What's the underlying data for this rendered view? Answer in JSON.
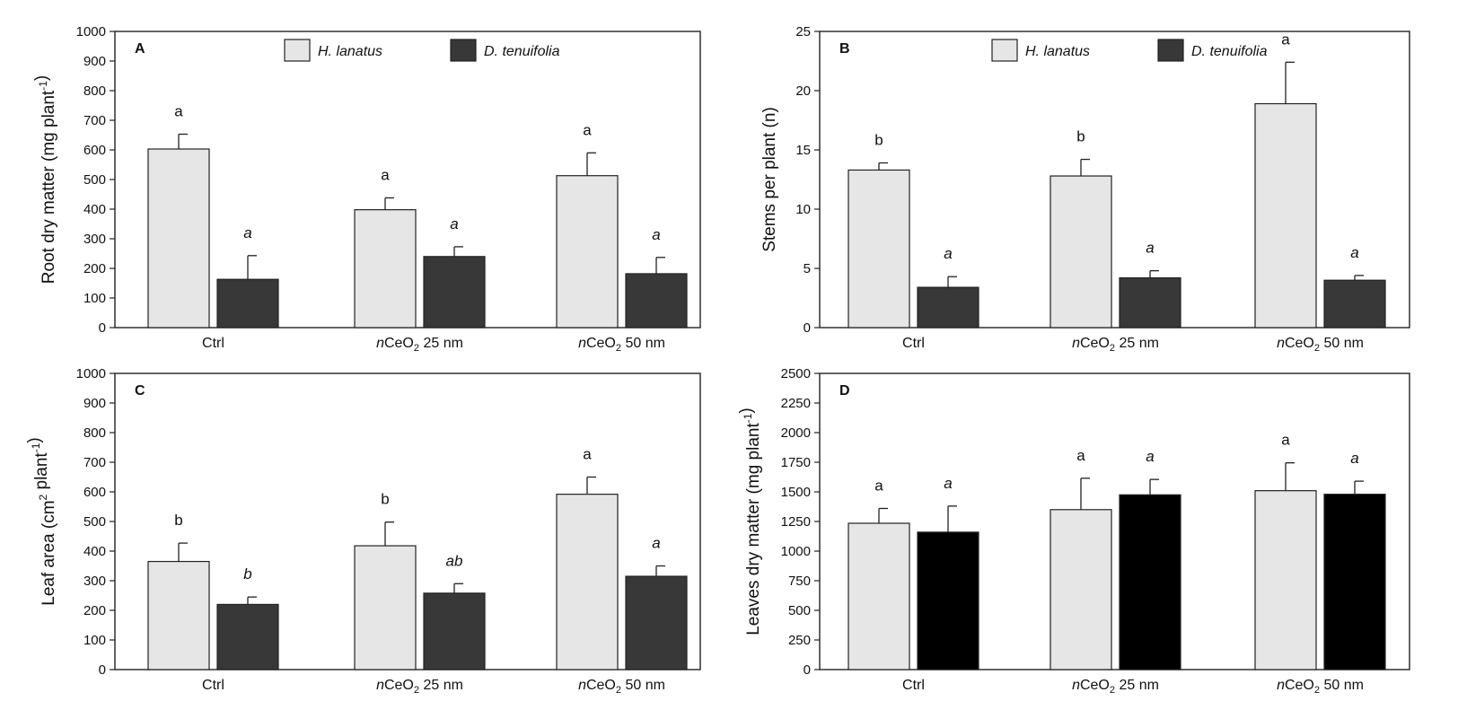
{
  "chart_data": [
    {
      "type": "bar",
      "panel_label": "A",
      "ylabel": "Root dry matter (mg plant",
      "ylabel_sup": "-1",
      "ylabel_tail": ")",
      "ylim": [
        0,
        1000
      ],
      "yticks": [
        0,
        100,
        200,
        300,
        400,
        500,
        600,
        700,
        800,
        900,
        1000
      ],
      "categories": [
        "Ctrl",
        "nCeO2 25 nm",
        "nCeO2 50 nm"
      ],
      "legend": "top-center",
      "series": [
        {
          "name": "H. lanatus",
          "color": "#e6e6e6",
          "values": [
            603,
            398,
            513
          ],
          "errors": [
            50,
            40,
            77
          ],
          "letters": [
            "a",
            "a",
            "a"
          ],
          "letter_italic": false
        },
        {
          "name": "D. tenuifolia",
          "color": "#383838",
          "values": [
            163,
            240,
            182
          ],
          "errors": [
            80,
            33,
            55
          ],
          "letters": [
            "a",
            "a",
            "a"
          ],
          "letter_italic": true
        }
      ]
    },
    {
      "type": "bar",
      "panel_label": "B",
      "ylabel": "Stems per plant (n)",
      "ylabel_sup": "",
      "ylabel_tail": "",
      "ylim": [
        0,
        25
      ],
      "yticks": [
        0,
        5,
        10,
        15,
        20,
        25
      ],
      "categories": [
        "Ctrl",
        "nCeO2 25 nm",
        "nCeO2 50 nm"
      ],
      "legend": "top-center",
      "series": [
        {
          "name": "H. lanatus",
          "color": "#e6e6e6",
          "values": [
            13.3,
            12.8,
            18.9
          ],
          "errors": [
            0.6,
            1.4,
            3.5
          ],
          "letters": [
            "b",
            "b",
            "a"
          ],
          "letter_italic": false
        },
        {
          "name": "D. tenuifolia",
          "color": "#383838",
          "values": [
            3.4,
            4.2,
            4.0
          ],
          "errors": [
            0.9,
            0.6,
            0.4
          ],
          "letters": [
            "a",
            "a",
            "a"
          ],
          "letter_italic": true
        }
      ]
    },
    {
      "type": "bar",
      "panel_label": "C",
      "ylabel": "Leaf area (cm",
      "ylabel_sup": "2",
      "ylabel_tail": " plant",
      "ylabel_sup2": "-1",
      "ylabel_tail2": ")",
      "ylim": [
        0,
        1000
      ],
      "yticks": [
        0,
        100,
        200,
        300,
        400,
        500,
        600,
        700,
        800,
        900,
        1000
      ],
      "categories": [
        "Ctrl",
        "nCeO2 25 nm",
        "nCeO2 50 nm"
      ],
      "legend": "none",
      "series": [
        {
          "name": "H. lanatus",
          "color": "#e6e6e6",
          "values": [
            365,
            418,
            592
          ],
          "errors": [
            62,
            80,
            58
          ],
          "letters": [
            "b",
            "b",
            "a"
          ],
          "letter_italic": false
        },
        {
          "name": "D. tenuifolia",
          "color": "#383838",
          "values": [
            220,
            258,
            315
          ],
          "errors": [
            25,
            32,
            35
          ],
          "letters": [
            "b",
            "ab",
            "a"
          ],
          "letter_italic": true
        }
      ]
    },
    {
      "type": "bar",
      "panel_label": "D",
      "ylabel": "Leaves dry matter (mg plant",
      "ylabel_sup": "-1",
      "ylabel_tail": ")",
      "ylim": [
        0,
        2500
      ],
      "yticks": [
        0,
        250,
        500,
        750,
        1000,
        1250,
        1500,
        1750,
        2000,
        2250,
        2500
      ],
      "categories": [
        "Ctrl",
        "nCeO2 25 nm",
        "nCeO2 50 nm"
      ],
      "legend": "none",
      "series": [
        {
          "name": "H. lanatus",
          "color": "#e6e6e6",
          "values": [
            1235,
            1350,
            1510
          ],
          "errors": [
            125,
            265,
            235
          ],
          "letters": [
            "a",
            "a",
            "a"
          ],
          "letter_italic": false
        },
        {
          "name": "D. tenuifolia",
          "color": "#000000",
          "values": [
            1160,
            1475,
            1480
          ],
          "errors": [
            220,
            130,
            110
          ],
          "letters": [
            "a",
            "a",
            "a"
          ],
          "letter_italic": true
        }
      ]
    }
  ]
}
